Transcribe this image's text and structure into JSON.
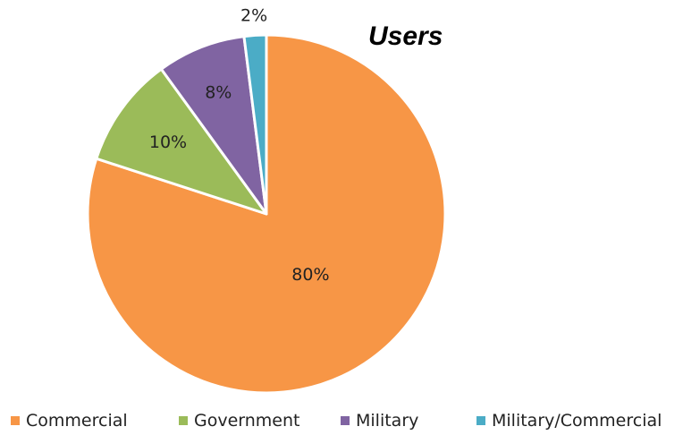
{
  "chart_data": {
    "type": "pie",
    "title": "Users",
    "categories": [
      "Commercial",
      "Government",
      "Military",
      "Military/Commercial"
    ],
    "values": [
      80,
      10,
      8,
      2
    ],
    "data_labels": [
      "80%",
      "10%",
      "8%",
      "2%"
    ],
    "colors": [
      "#F79646",
      "#9BBB59",
      "#8064A2",
      "#4BACC6"
    ],
    "start_angle_deg": 0,
    "direction": "clockwise",
    "legend_position": "bottom"
  }
}
